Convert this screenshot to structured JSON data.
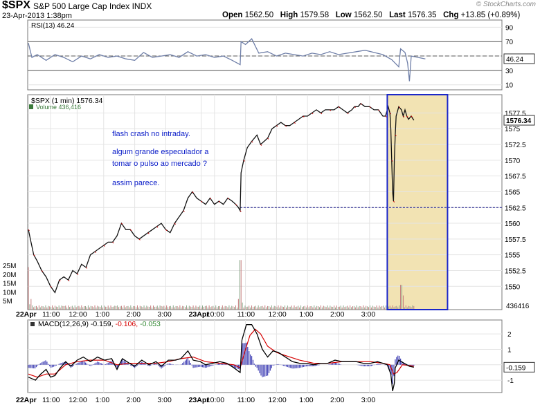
{
  "header": {
    "symbol": "$SPX",
    "name": "S&P 500 Large Cap Index",
    "exchange": "INDX",
    "date": "23-Apr-2013 1:38pm",
    "open_label": "Open",
    "open": "1562.50",
    "high_label": "High",
    "high": "1579.58",
    "low_label": "Low",
    "low": "1562.50",
    "last_label": "Last",
    "last": "1576.35",
    "chg_label": "Chg",
    "chg": "+13.85 (+0.89%)",
    "copyright": "© StockCharts.com"
  },
  "chart_data": [
    {
      "type": "line",
      "panel": "rsi",
      "legend": "RSI(13) 46.24",
      "series": [
        {
          "name": "RSI(13)"
        }
      ],
      "yticks": [
        10,
        30,
        50,
        70,
        90
      ],
      "reference_lines": [
        30,
        50,
        70
      ],
      "last_value": "46.24",
      "ylim": [
        3,
        100
      ],
      "points": [
        [
          0,
          68
        ],
        [
          4,
          48
        ],
        [
          10,
          52
        ],
        [
          20,
          44
        ],
        [
          30,
          52
        ],
        [
          40,
          48
        ],
        [
          50,
          42
        ],
        [
          60,
          50
        ],
        [
          70,
          46
        ],
        [
          80,
          52
        ],
        [
          90,
          48
        ],
        [
          100,
          50
        ],
        [
          110,
          46
        ],
        [
          120,
          44
        ],
        [
          130,
          55
        ],
        [
          140,
          48
        ],
        [
          150,
          50
        ],
        [
          160,
          52
        ],
        [
          170,
          48
        ],
        [
          180,
          56
        ],
        [
          190,
          50
        ],
        [
          200,
          52
        ],
        [
          210,
          48
        ],
        [
          220,
          50
        ],
        [
          230,
          44
        ],
        [
          239,
          38
        ],
        [
          240,
          70
        ],
        [
          245,
          66
        ],
        [
          252,
          74
        ],
        [
          260,
          54
        ],
        [
          270,
          56
        ],
        [
          280,
          50
        ],
        [
          290,
          54
        ],
        [
          300,
          52
        ],
        [
          310,
          50
        ],
        [
          320,
          54
        ],
        [
          330,
          52
        ],
        [
          340,
          56
        ],
        [
          350,
          52
        ],
        [
          360,
          54
        ],
        [
          370,
          56
        ],
        [
          380,
          58
        ],
        [
          390,
          55
        ],
        [
          400,
          52
        ],
        [
          410,
          45
        ],
        [
          418,
          35
        ],
        [
          420,
          60
        ],
        [
          425,
          55
        ],
        [
          428,
          40
        ],
        [
          430,
          15
        ],
        [
          432,
          50
        ],
        [
          440,
          48
        ],
        [
          448,
          46
        ]
      ]
    },
    {
      "type": "line",
      "panel": "price",
      "legend": "$SPX (1 min) 1576.34",
      "volume_legend": "Volume 436,416",
      "series": [
        {
          "name": "$SPX (1 min)"
        },
        {
          "name": "Volume"
        }
      ],
      "yticks": [
        1550,
        1552.5,
        1555,
        1557.5,
        1560,
        1562.5,
        1565,
        1567.5,
        1570,
        1572.5,
        1575,
        1577.5
      ],
      "ylim": [
        1546.3,
        1580.4
      ],
      "last_value": "1576.34",
      "previous_close_line": 1562.5,
      "volume_axis_labels": [
        "5M",
        "10M",
        "15M",
        "20M",
        "25M"
      ],
      "last_volume": "436416",
      "highlight_range_minutes": [
        405,
        473
      ],
      "points": [
        [
          0,
          1559
        ],
        [
          3,
          1557
        ],
        [
          6,
          1555
        ],
        [
          10,
          1554
        ],
        [
          15,
          1552.5
        ],
        [
          20,
          1551.5
        ],
        [
          25,
          1550
        ],
        [
          30,
          1549
        ],
        [
          35,
          1551
        ],
        [
          40,
          1551.5
        ],
        [
          45,
          1551
        ],
        [
          50,
          1552.5
        ],
        [
          55,
          1552
        ],
        [
          60,
          1553.5
        ],
        [
          65,
          1553
        ],
        [
          70,
          1555
        ],
        [
          75,
          1555.5
        ],
        [
          80,
          1556
        ],
        [
          85,
          1556.5
        ],
        [
          90,
          1557
        ],
        [
          95,
          1557
        ],
        [
          100,
          1558
        ],
        [
          105,
          1560
        ],
        [
          110,
          1559
        ],
        [
          115,
          1559
        ],
        [
          120,
          1558
        ],
        [
          125,
          1557.5
        ],
        [
          130,
          1558
        ],
        [
          135,
          1558.5
        ],
        [
          140,
          1559
        ],
        [
          145,
          1559.5
        ],
        [
          150,
          1560
        ],
        [
          155,
          1559
        ],
        [
          160,
          1558.5
        ],
        [
          165,
          1560
        ],
        [
          170,
          1561
        ],
        [
          175,
          1562
        ],
        [
          180,
          1564
        ],
        [
          185,
          1565
        ],
        [
          190,
          1564
        ],
        [
          195,
          1563.5
        ],
        [
          200,
          1563
        ],
        [
          205,
          1564
        ],
        [
          210,
          1563
        ],
        [
          215,
          1563.5
        ],
        [
          220,
          1563
        ],
        [
          225,
          1564
        ],
        [
          230,
          1563.5
        ],
        [
          234,
          1563
        ],
        [
          237,
          1562.5
        ],
        [
          239,
          1562
        ],
        [
          240,
          1568
        ],
        [
          243,
          1570
        ],
        [
          247,
          1572
        ],
        [
          252,
          1573
        ],
        [
          258,
          1574
        ],
        [
          262,
          1572.5
        ],
        [
          266,
          1573
        ],
        [
          270,
          1573.5
        ],
        [
          275,
          1575
        ],
        [
          280,
          1575.5
        ],
        [
          285,
          1576
        ],
        [
          290,
          1575.5
        ],
        [
          295,
          1575.5
        ],
        [
          300,
          1576
        ],
        [
          305,
          1576.5
        ],
        [
          310,
          1577
        ],
        [
          315,
          1577
        ],
        [
          320,
          1577.5
        ],
        [
          325,
          1578
        ],
        [
          330,
          1577.5
        ],
        [
          335,
          1578
        ],
        [
          340,
          1578
        ],
        [
          345,
          1578
        ],
        [
          350,
          1578.5
        ],
        [
          355,
          1578
        ],
        [
          360,
          1577.5
        ],
        [
          365,
          1578
        ],
        [
          368,
          1578.5
        ],
        [
          372,
          1578.5
        ],
        [
          375,
          1579
        ],
        [
          380,
          1578.5
        ],
        [
          385,
          1578.5
        ],
        [
          390,
          1578
        ],
        [
          395,
          1578
        ],
        [
          400,
          1577
        ],
        [
          403,
          1577
        ],
        [
          406,
          1578.5
        ],
        [
          408,
          1577.5
        ],
        [
          409,
          1575
        ],
        [
          410,
          1570
        ],
        [
          411,
          1565
        ],
        [
          412,
          1563.5
        ],
        [
          413,
          1570
        ],
        [
          414,
          1574
        ],
        [
          415,
          1577
        ],
        [
          418,
          1578.5
        ],
        [
          421,
          1578
        ],
        [
          423,
          1577
        ],
        [
          425,
          1578
        ],
        [
          427,
          1577
        ],
        [
          429,
          1576.5
        ],
        [
          432,
          1577
        ],
        [
          435,
          1576.34
        ]
      ],
      "volume_points": [
        [
          0,
          24
        ],
        [
          1,
          3
        ],
        [
          3,
          6
        ],
        [
          40,
          2
        ],
        [
          100,
          2
        ],
        [
          150,
          2
        ],
        [
          200,
          2
        ],
        [
          238,
          6
        ],
        [
          239,
          28
        ],
        [
          240,
          10
        ],
        [
          241,
          4
        ],
        [
          300,
          2
        ],
        [
          400,
          2
        ],
        [
          405,
          3
        ],
        [
          420,
          3
        ],
        [
          421,
          14
        ],
        [
          422,
          8
        ],
        [
          423,
          3
        ],
        [
          435,
          2
        ]
      ]
    },
    {
      "type": "line",
      "panel": "macd",
      "legend_prefix": "MACD(12,26,9)",
      "legend_values": [
        "-0.159",
        "-0.106",
        "-0.053"
      ],
      "legend_colors": [
        "#000000",
        "#d60000",
        "#338833"
      ],
      "series": [
        {
          "name": "MACD(12,26,9)",
          "color": "#000000"
        },
        {
          "name": "Signal",
          "color": "#d60000"
        },
        {
          "name": "Histogram",
          "color": "#3c3cb0"
        }
      ],
      "yticks": [
        -1,
        0,
        1,
        2
      ],
      "ylim": [
        -1.8,
        2.9
      ],
      "last_value": "-0.159",
      "macd_points": [
        [
          0,
          -0.8
        ],
        [
          8,
          -1.0
        ],
        [
          14,
          -0.6
        ],
        [
          20,
          -0.3
        ],
        [
          25,
          -0.8
        ],
        [
          30,
          -0.7
        ],
        [
          36,
          -0.2
        ],
        [
          42,
          0.2
        ],
        [
          48,
          -0.1
        ],
        [
          55,
          0.3
        ],
        [
          62,
          0.5
        ],
        [
          70,
          0.2
        ],
        [
          78,
          0.5
        ],
        [
          86,
          0.3
        ],
        [
          94,
          0.4
        ],
        [
          100,
          -0.3
        ],
        [
          106,
          0.4
        ],
        [
          114,
          0.1
        ],
        [
          120,
          -0.1
        ],
        [
          128,
          0.3
        ],
        [
          136,
          0.0
        ],
        [
          144,
          0.2
        ],
        [
          150,
          -0.1
        ],
        [
          158,
          0.3
        ],
        [
          166,
          0.3
        ],
        [
          172,
          0.4
        ],
        [
          180,
          0.9
        ],
        [
          186,
          0.3
        ],
        [
          194,
          0.2
        ],
        [
          200,
          0.0
        ],
        [
          208,
          0.1
        ],
        [
          216,
          0.2
        ],
        [
          224,
          0.1
        ],
        [
          232,
          -0.2
        ],
        [
          239,
          -0.5
        ],
        [
          241,
          1.6
        ],
        [
          246,
          2.6
        ],
        [
          252,
          2.6
        ],
        [
          258,
          2.0
        ],
        [
          264,
          1.0
        ],
        [
          270,
          0.5
        ],
        [
          276,
          0.9
        ],
        [
          282,
          0.8
        ],
        [
          290,
          0.5
        ],
        [
          298,
          0.2
        ],
        [
          306,
          0.1
        ],
        [
          314,
          0.1
        ],
        [
          322,
          0.0
        ],
        [
          330,
          0.1
        ],
        [
          338,
          0.1
        ],
        [
          346,
          0.3
        ],
        [
          354,
          0.2
        ],
        [
          362,
          0.2
        ],
        [
          370,
          0.2
        ],
        [
          378,
          0.1
        ],
        [
          386,
          0.1
        ],
        [
          394,
          0.2
        ],
        [
          400,
          0.1
        ],
        [
          405,
          0.0
        ],
        [
          409,
          -0.6
        ],
        [
          411,
          -1.7
        ],
        [
          413,
          -1.2
        ],
        [
          414,
          -0.2
        ],
        [
          418,
          0.3
        ],
        [
          424,
          0.1
        ],
        [
          430,
          -0.1
        ],
        [
          435,
          -0.16
        ]
      ],
      "signal_points": [
        [
          0,
          -0.6
        ],
        [
          10,
          -0.8
        ],
        [
          20,
          -0.6
        ],
        [
          30,
          -0.6
        ],
        [
          42,
          0.0
        ],
        [
          55,
          0.2
        ],
        [
          70,
          0.3
        ],
        [
          86,
          0.3
        ],
        [
          100,
          0.0
        ],
        [
          114,
          0.1
        ],
        [
          128,
          0.1
        ],
        [
          144,
          0.1
        ],
        [
          158,
          0.2
        ],
        [
          172,
          0.4
        ],
        [
          186,
          0.5
        ],
        [
          200,
          0.2
        ],
        [
          216,
          0.1
        ],
        [
          232,
          0.0
        ],
        [
          239,
          -0.2
        ],
        [
          244,
          0.8
        ],
        [
          250,
          1.9
        ],
        [
          256,
          2.3
        ],
        [
          262,
          2.0
        ],
        [
          270,
          1.2
        ],
        [
          280,
          0.8
        ],
        [
          290,
          0.6
        ],
        [
          306,
          0.3
        ],
        [
          322,
          0.1
        ],
        [
          338,
          0.1
        ],
        [
          354,
          0.2
        ],
        [
          370,
          0.2
        ],
        [
          386,
          0.2
        ],
        [
          400,
          0.1
        ],
        [
          408,
          0.0
        ],
        [
          412,
          -0.6
        ],
        [
          416,
          -0.5
        ],
        [
          422,
          0.0
        ],
        [
          430,
          -0.05
        ],
        [
          435,
          -0.1
        ]
      ]
    }
  ],
  "x_axis": [
    {
      "label": "22Apr",
      "minute": 0,
      "bold": true
    },
    {
      "label": "11:00",
      "minute": 25
    },
    {
      "label": "12:00",
      "minute": 55
    },
    {
      "label": "1:00",
      "minute": 85
    },
    {
      "label": "2:00",
      "minute": 120
    },
    {
      "label": "3:00",
      "minute": 155
    },
    {
      "label": "23Apr",
      "minute": 195,
      "bold": true
    },
    {
      "label": "10:00",
      "minute": 210
    },
    {
      "label": "11:00",
      "minute": 245
    },
    {
      "label": "12:00",
      "minute": 280
    },
    {
      "label": "1:00",
      "minute": 315
    },
    {
      "label": "2:00",
      "minute": 350
    },
    {
      "label": "3:00",
      "minute": 385
    }
  ],
  "annotation": {
    "line1": "flash crash no intraday.",
    "line2": "algum grande especulador a",
    "line3": "tomar o pulso ao mercado ?",
    "line4": "assim parece."
  }
}
